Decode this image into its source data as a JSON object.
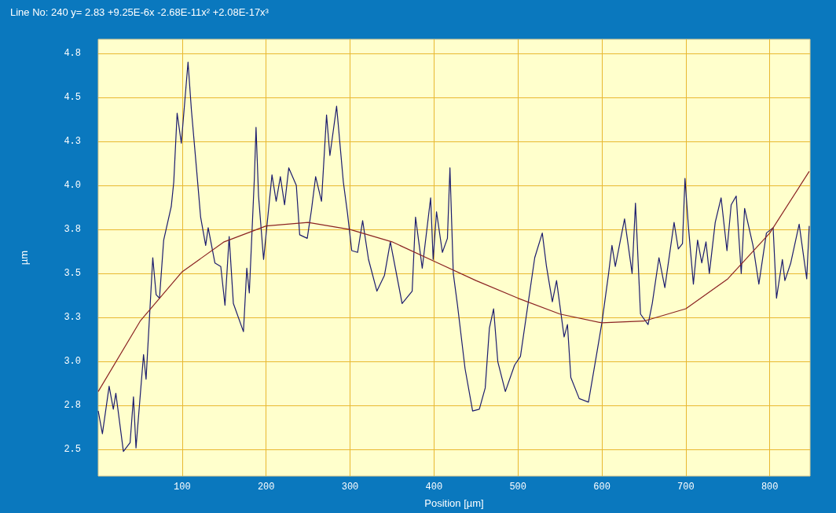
{
  "chart_data": {
    "type": "line",
    "title": "Line No: 240 y= 2.83 +9.25E-6x -2.68E-11x² +2.08E-17x³",
    "xlabel": "Position [µm]",
    "ylabel": "µm",
    "xlim": [
      0,
      848
    ],
    "xticks": [
      100,
      200,
      300,
      400,
      500,
      600,
      700,
      800
    ],
    "ylim": [
      2.35,
      4.83
    ],
    "yticks": [
      2.5,
      {
        "value": 2.75,
        "label": "2.8"
      },
      {
        "value": 3.0,
        "label": "3.0"
      },
      {
        "value": 3.25,
        "label": "3.3"
      },
      3.5,
      {
        "value": 3.75,
        "label": "3.8"
      },
      {
        "value": 4.0,
        "label": "4.0"
      },
      {
        "value": 4.25,
        "label": "4.3"
      },
      4.5,
      {
        "value": 4.75,
        "label": "4.8"
      }
    ],
    "grid": true,
    "series": [
      {
        "color": "#1c1c6e",
        "x": [
          0,
          5,
          13,
          18,
          21,
          30,
          38,
          42,
          45,
          54,
          57,
          65,
          69,
          73,
          78,
          87,
          90,
          94,
          99,
          107,
          111,
          117,
          122,
          128,
          131,
          139,
          146,
          151,
          156,
          161,
          173,
          177,
          180,
          186,
          188,
          191,
          197,
          207,
          212,
          217,
          222,
          227,
          236,
          240,
          249,
          254,
          259,
          266,
          272,
          276,
          284,
          292,
          297,
          302,
          309,
          315,
          322,
          332,
          341,
          348,
          362,
          374,
          378,
          386,
          396,
          399,
          403,
          410,
          416,
          419,
          423,
          428,
          437,
          446,
          454,
          461,
          466,
          471,
          476,
          485,
          496,
          503,
          520,
          529,
          534,
          541,
          546,
          555,
          559,
          563,
          573,
          584,
          594,
          600,
          608,
          612,
          616,
          627,
          636,
          640,
          646,
          655,
          660,
          668,
          675,
          686,
          691,
          696,
          699,
          703,
          709,
          714,
          719,
          724,
          728,
          735,
          742,
          749,
          754,
          760,
          766,
          770,
          780,
          787,
          796,
          804,
          808,
          815,
          818,
          825,
          835,
          844,
          847
        ],
        "values": [
          2.72,
          2.59,
          2.86,
          2.73,
          2.82,
          2.49,
          2.54,
          2.8,
          2.51,
          3.04,
          2.9,
          3.59,
          3.38,
          3.36,
          3.69,
          3.88,
          4.02,
          4.41,
          4.24,
          4.7,
          4.43,
          4.1,
          3.82,
          3.66,
          3.76,
          3.56,
          3.54,
          3.32,
          3.71,
          3.33,
          3.17,
          3.53,
          3.39,
          4.04,
          4.33,
          3.94,
          3.58,
          4.06,
          3.91,
          4.05,
          3.89,
          4.1,
          4.0,
          3.72,
          3.7,
          3.86,
          4.05,
          3.91,
          4.4,
          4.17,
          4.45,
          4.02,
          3.84,
          3.63,
          3.62,
          3.8,
          3.58,
          3.4,
          3.49,
          3.68,
          3.33,
          3.4,
          3.82,
          3.53,
          3.93,
          3.58,
          3.85,
          3.62,
          3.7,
          4.1,
          3.5,
          3.32,
          2.96,
          2.72,
          2.73,
          2.85,
          3.19,
          3.3,
          3.0,
          2.83,
          2.98,
          3.03,
          3.59,
          3.73,
          3.54,
          3.34,
          3.46,
          3.14,
          3.21,
          2.91,
          2.79,
          2.77,
          3.05,
          3.22,
          3.5,
          3.66,
          3.54,
          3.81,
          3.5,
          3.9,
          3.27,
          3.21,
          3.33,
          3.59,
          3.42,
          3.79,
          3.64,
          3.67,
          4.04,
          3.77,
          3.44,
          3.69,
          3.56,
          3.68,
          3.5,
          3.79,
          3.93,
          3.63,
          3.89,
          3.94,
          3.5,
          3.87,
          3.66,
          3.44,
          3.73,
          3.76,
          3.36,
          3.58,
          3.46,
          3.56,
          3.78,
          3.47,
          3.77
        ]
      },
      {
        "color": "#8b2323",
        "x": [
          0,
          50,
          100,
          150,
          200,
          250,
          300,
          350,
          400,
          450,
          500,
          550,
          600,
          650,
          700,
          750,
          800,
          847
        ],
        "values": [
          2.83,
          3.23,
          3.51,
          3.68,
          3.77,
          3.79,
          3.75,
          3.68,
          3.57,
          3.46,
          3.36,
          3.27,
          3.22,
          3.23,
          3.3,
          3.47,
          3.73,
          4.08
        ]
      }
    ]
  }
}
